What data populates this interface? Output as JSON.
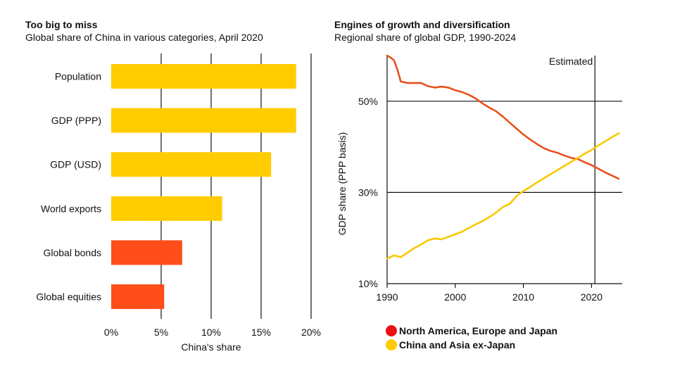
{
  "chart_data": [
    {
      "type": "bar",
      "orientation": "horizontal",
      "title": "Too big to miss",
      "subtitle": "Global share of China in various categories, April 2020",
      "categories": [
        "Population",
        "GDP (PPP)",
        "GDP (USD)",
        "World exports",
        "Global bonds",
        "Global equities"
      ],
      "values": [
        18.5,
        18.5,
        16.0,
        11.1,
        7.1,
        5.3
      ],
      "bar_colors": [
        "#ffcc00",
        "#ffcc00",
        "#ffcc00",
        "#ffcc00",
        "#ff4e1a",
        "#ff4e1a"
      ],
      "xlabel": "China's share",
      "xlim": [
        0,
        20
      ],
      "xticks": [
        0,
        5,
        10,
        15,
        20
      ],
      "xtick_labels": [
        "0%",
        "5%",
        "10%",
        "15%",
        "20%"
      ],
      "grid": true
    },
    {
      "type": "line",
      "title": "Engines of growth and diversification",
      "subtitle": "Regional share of global GDP, 1990-2024",
      "ylabel": "GDP share (PPP basis)",
      "xlim": [
        1990,
        2024.5
      ],
      "ylim": [
        10,
        60
      ],
      "xticks": [
        1990,
        2000,
        2010,
        2020
      ],
      "xtick_labels": [
        "1990",
        "2000",
        "2010",
        "2020"
      ],
      "yticks": [
        10,
        30,
        50
      ],
      "ytick_labels": [
        "10%",
        "30%",
        "50%"
      ],
      "annotation": {
        "label": "Estimated",
        "x": 2020.5
      },
      "legend_position": "bottom",
      "series": [
        {
          "name": "North America, Europe and Japan",
          "color": "#e8501e",
          "x": [
            1990,
            1990.5,
            1991,
            1991.5,
            1992,
            1993,
            1994,
            1995,
            1996,
            1997,
            1998,
            1999,
            2000,
            2001,
            2002,
            2003,
            2004,
            2005,
            2006,
            2007,
            2008,
            2009,
            2010,
            2011,
            2012,
            2013,
            2014,
            2015,
            2016,
            2017,
            2018,
            2019,
            2020,
            2021,
            2022,
            2023,
            2024
          ],
          "values": [
            60,
            59.6,
            59,
            57,
            54.3,
            54,
            54,
            54,
            53.3,
            53,
            53.2,
            53,
            52.4,
            52,
            51.4,
            50.6,
            49.5,
            48.6,
            47.8,
            46.6,
            45.3,
            44,
            42.7,
            41.6,
            40.6,
            39.7,
            39.1,
            38.7,
            38.1,
            37.6,
            37.3,
            36.6,
            36,
            35.2,
            34.4,
            33.7,
            33
          ]
        },
        {
          "name": "China and Asia ex-Japan",
          "color": "#fac800",
          "x": [
            1990,
            1991,
            1992,
            1993,
            1994,
            1995,
            1996,
            1997,
            1998,
            1999,
            2000,
            2001,
            2002,
            2003,
            2004,
            2005,
            2006,
            2007,
            2008,
            2009,
            2010,
            2011,
            2012,
            2013,
            2014,
            2015,
            2016,
            2017,
            2018,
            2019,
            2020,
            2021,
            2022,
            2023,
            2024
          ],
          "values": [
            15.5,
            16.2,
            15.8,
            16.8,
            17.8,
            18.6,
            19.5,
            19.9,
            19.7,
            20.3,
            20.8,
            21.4,
            22.2,
            23,
            23.7,
            24.6,
            25.6,
            26.8,
            27.5,
            29.2,
            30.3,
            31.2,
            32.2,
            33.1,
            34,
            34.9,
            35.8,
            36.7,
            37.6,
            38.5,
            39.3,
            40.3,
            41.2,
            42.1,
            43
          ]
        }
      ]
    }
  ]
}
